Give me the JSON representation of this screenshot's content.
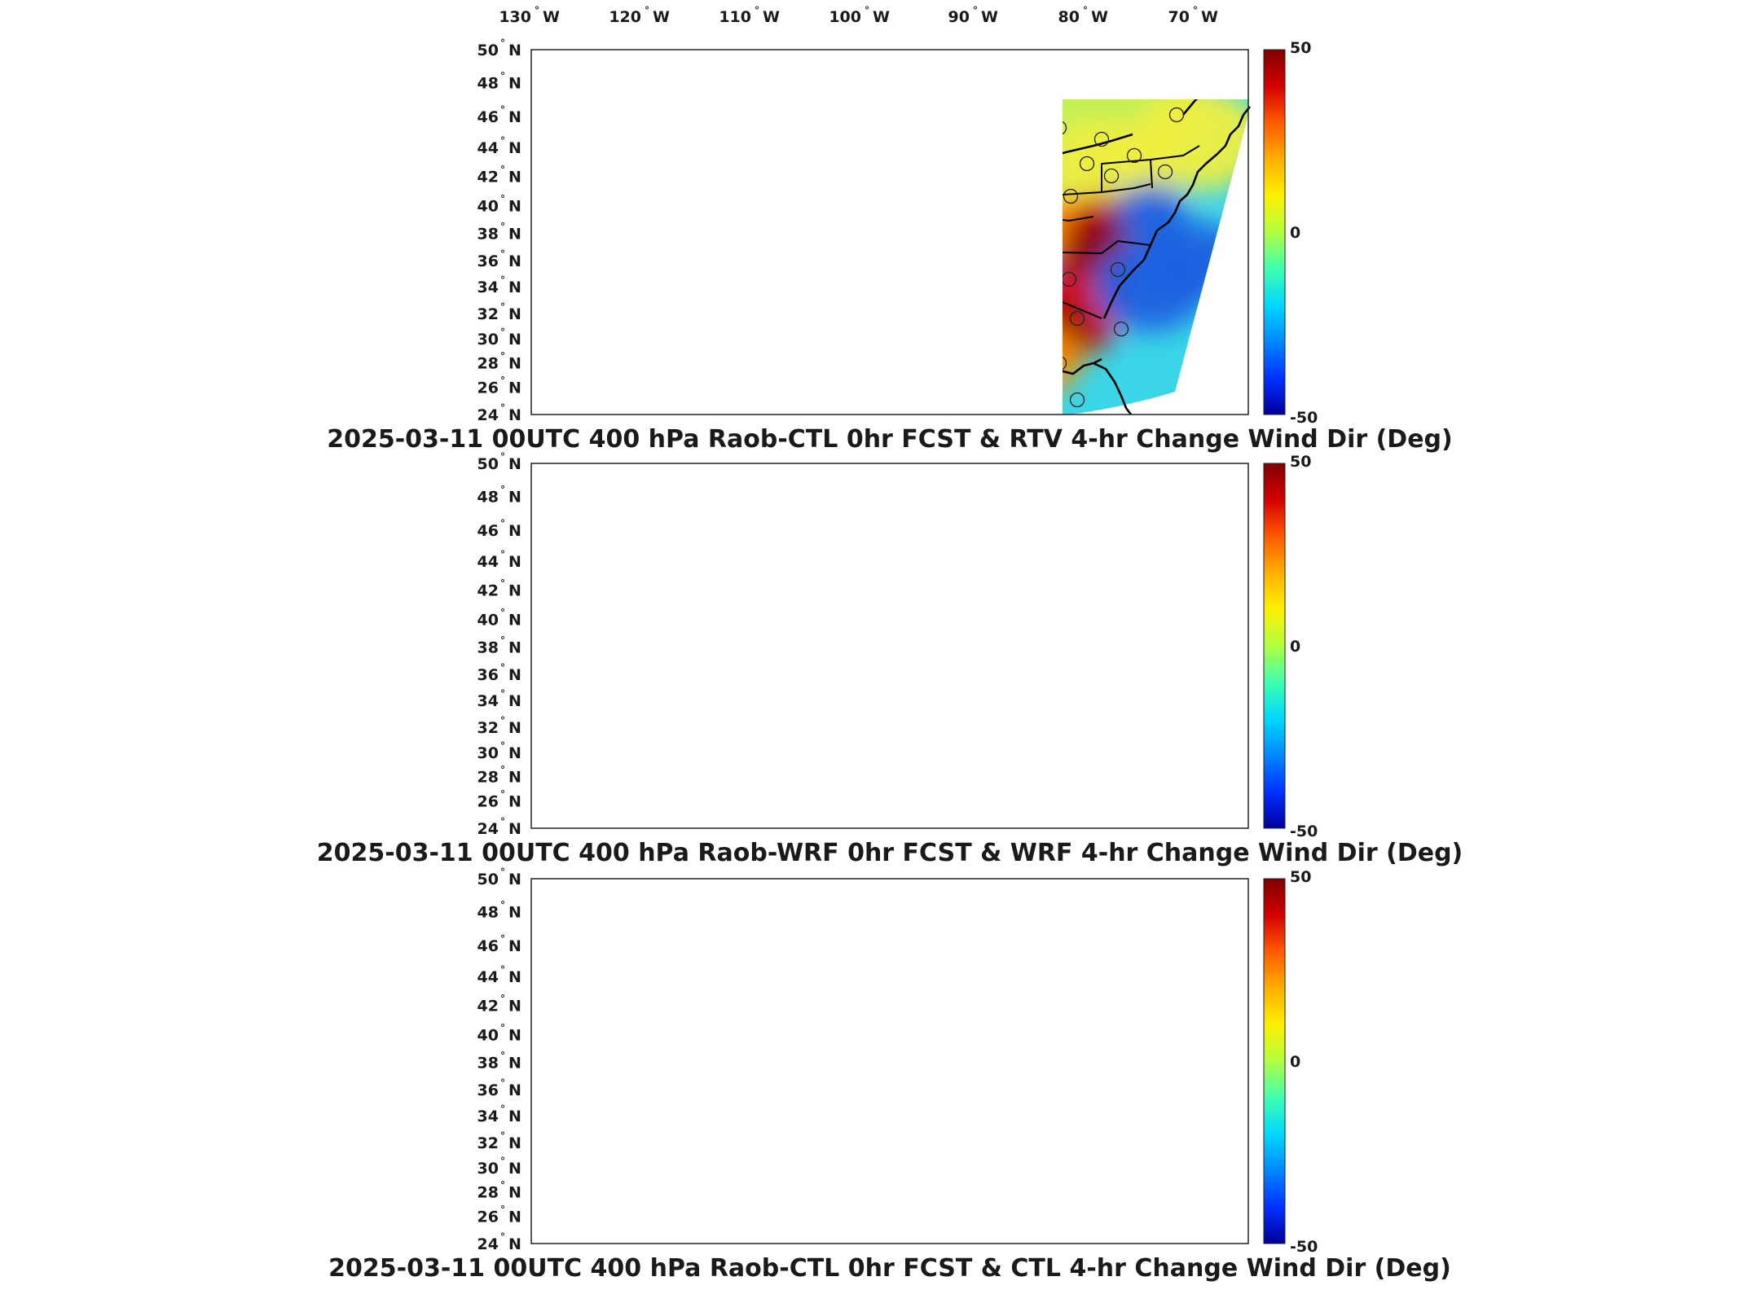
{
  "lon_axis": {
    "labels": [
      "130",
      "120",
      "110",
      "100",
      "90",
      "80",
      "70"
    ],
    "hemisphere": "W",
    "degree_symbol": "°"
  },
  "lat_axis": {
    "labels": [
      "50",
      "48",
      "46",
      "44",
      "42",
      "40",
      "38",
      "36",
      "34",
      "32",
      "30",
      "28",
      "26",
      "24"
    ],
    "hemisphere": "N",
    "degree_symbol": "°"
  },
  "colorbar": {
    "ticks": [
      "50",
      "0",
      "-50"
    ],
    "colors": [
      "#800000",
      "#d40000",
      "#ff5a00",
      "#ffb000",
      "#fff000",
      "#b0ff40",
      "#40ffb0",
      "#00d8ff",
      "#0088ff",
      "#0030ff",
      "#00009a"
    ]
  },
  "field_colors": {
    "background": "#3ad6e8",
    "yellow_green": "#c8f050",
    "yellow": "#f0ee40",
    "blue": "#1f60e0",
    "deep_blue": "#0a20c0",
    "orange": "#ff8c00",
    "red": "#d41000",
    "dark_red": "#8b0000"
  },
  "panels": [
    {
      "title": "2025-03-11 00UTC 400 hPa Raob-CTL 0hr FCST & RTV 4-hr Change Wind Dir (Deg)"
    },
    {
      "title": "2025-03-11 00UTC 400 hPa Raob-WRF 0hr FCST & WRF 4-hr Change Wind Dir (Deg)"
    },
    {
      "title": "2025-03-11 00UTC 400 hPa Raob-CTL 0hr FCST & CTL 4-hr Change Wind Dir (Deg)"
    }
  ]
}
